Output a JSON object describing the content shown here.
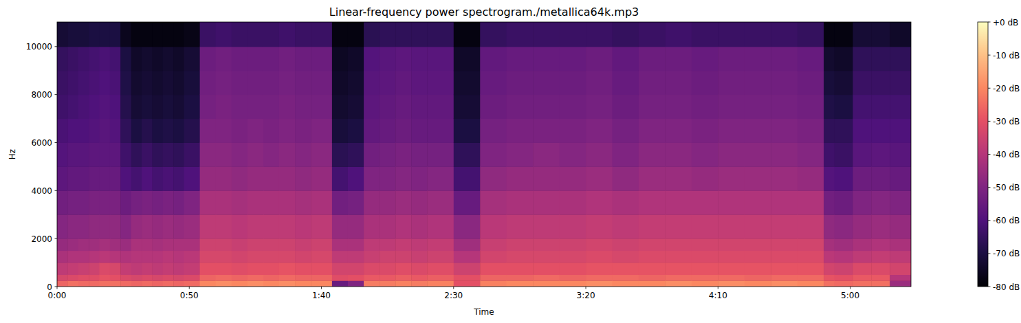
{
  "chart_data": {
    "type": "heatmap",
    "title": "Linear-frequency power spectrogram./metallica64k.mp3",
    "x_label": "Time",
    "y_label": "Hz",
    "xlim": [
      0,
      323
    ],
    "ylim": [
      0,
      11025
    ],
    "xticks": [
      {
        "value": 0,
        "label": "0:00"
      },
      {
        "value": 50,
        "label": "0:50"
      },
      {
        "value": 100,
        "label": "1:40"
      },
      {
        "value": 150,
        "label": "2:30"
      },
      {
        "value": 200,
        "label": "3:20"
      },
      {
        "value": 250,
        "label": "4:10"
      },
      {
        "value": 300,
        "label": "5:00"
      }
    ],
    "yticks": [
      0,
      2000,
      4000,
      6000,
      8000,
      10000
    ],
    "x_edges": [
      0,
      4,
      8,
      12,
      16,
      20,
      24,
      28,
      32,
      36,
      40,
      44,
      48,
      54,
      60,
      66,
      72,
      78,
      84,
      90,
      96,
      104,
      110,
      116,
      122,
      128,
      134,
      140,
      150,
      160,
      170,
      180,
      190,
      200,
      210,
      220,
      230,
      240,
      250,
      260,
      270,
      280,
      290,
      294,
      301,
      308,
      315,
      323
    ],
    "y_edges": [
      0,
      250,
      500,
      1000,
      1500,
      2000,
      3000,
      4000,
      5000,
      6000,
      7000,
      8000,
      9000,
      10000,
      11025
    ],
    "z": [
      [
        -26,
        -33,
        -38,
        -42,
        -46,
        -49,
        -53,
        -57,
        -59,
        -61,
        -63,
        -64,
        -65,
        -72
      ],
      [
        -24,
        -32,
        -37,
        -41,
        -45,
        -48,
        -52,
        -56,
        -58,
        -60,
        -62,
        -63,
        -64,
        -71
      ],
      [
        -25,
        -31,
        -36,
        -41,
        -44,
        -48,
        -52,
        -56,
        -58,
        -60,
        -61,
        -62,
        -63,
        -71
      ],
      [
        -25,
        -31,
        -35,
        -40,
        -44,
        -47,
        -51,
        -55,
        -57,
        -59,
        -60,
        -61,
        -62,
        -70
      ],
      [
        -24,
        -29,
        -32,
        -39,
        -43,
        -47,
        -51,
        -55,
        -57,
        -58,
        -59,
        -60,
        -61,
        -70
      ],
      [
        -24,
        -30,
        -33,
        -40,
        -44,
        -47,
        -51,
        -55,
        -57,
        -59,
        -60,
        -61,
        -62,
        -70
      ],
      [
        -25,
        -32,
        -37,
        -41,
        -45,
        -49,
        -54,
        -60,
        -63,
        -66,
        -68,
        -69,
        -70,
        -76
      ],
      [
        -26,
        -33,
        -38,
        -40,
        -42,
        -46,
        -52,
        -62,
        -66,
        -70,
        -72,
        -73,
        -74,
        -78
      ],
      [
        -25,
        -32,
        -37,
        -40,
        -42,
        -45,
        -51,
        -60,
        -64,
        -68,
        -71,
        -72,
        -73,
        -78
      ],
      [
        -26,
        -33,
        -38,
        -40,
        -43,
        -46,
        -52,
        -62,
        -66,
        -70,
        -72,
        -73,
        -74,
        -78
      ],
      [
        -25,
        -32,
        -37,
        -39,
        -42,
        -45,
        -51,
        -61,
        -65,
        -69,
        -71,
        -72,
        -73,
        -78
      ],
      [
        -26,
        -33,
        -38,
        -40,
        -42,
        -46,
        -52,
        -62,
        -66,
        -70,
        -72,
        -73,
        -74,
        -78
      ],
      [
        -25,
        -32,
        -37,
        -39,
        -42,
        -45,
        -50,
        -60,
        -64,
        -68,
        -70,
        -71,
        -72,
        -77
      ],
      [
        -20,
        -26,
        -30,
        -33,
        -35,
        -38,
        -42,
        -46,
        -48,
        -50,
        -52,
        -53,
        -54,
        -64
      ],
      [
        -19,
        -25,
        -30,
        -33,
        -35,
        -38,
        -42,
        -46,
        -48,
        -50,
        -51,
        -52,
        -53,
        -63
      ],
      [
        -20,
        -26,
        -31,
        -34,
        -36,
        -39,
        -43,
        -47,
        -49,
        -51,
        -52,
        -53,
        -54,
        -64
      ],
      [
        -19,
        -25,
        -30,
        -33,
        -35,
        -38,
        -42,
        -46,
        -48,
        -50,
        -52,
        -53,
        -54,
        -64
      ],
      [
        -20,
        -26,
        -30,
        -33,
        -35,
        -38,
        -42,
        -46,
        -49,
        -51,
        -52,
        -53,
        -54,
        -64
      ],
      [
        -19,
        -25,
        -29,
        -33,
        -35,
        -38,
        -42,
        -46,
        -48,
        -50,
        -51,
        -52,
        -53,
        -63
      ],
      [
        -20,
        -26,
        -30,
        -34,
        -36,
        -39,
        -43,
        -47,
        -49,
        -51,
        -52,
        -53,
        -54,
        -64
      ],
      [
        -20,
        -26,
        -30,
        -33,
        -35,
        -38,
        -42,
        -46,
        -48,
        -50,
        -52,
        -53,
        -54,
        -64
      ],
      [
        -55,
        -31,
        -34,
        -38,
        -42,
        -46,
        -53,
        -62,
        -67,
        -71,
        -73,
        -74,
        -75,
        -78
      ],
      [
        -50,
        -30,
        -34,
        -38,
        -42,
        -46,
        -52,
        -60,
        -66,
        -70,
        -72,
        -73,
        -74,
        -78
      ],
      [
        -22,
        -28,
        -32,
        -36,
        -38,
        -42,
        -46,
        -50,
        -53,
        -56,
        -57,
        -58,
        -59,
        -67
      ],
      [
        -22,
        -28,
        -32,
        -35,
        -38,
        -42,
        -46,
        -50,
        -52,
        -55,
        -56,
        -57,
        -58,
        -66
      ],
      [
        -21,
        -27,
        -31,
        -35,
        -37,
        -41,
        -45,
        -49,
        -51,
        -54,
        -55,
        -56,
        -57,
        -66
      ],
      [
        -22,
        -28,
        -32,
        -36,
        -38,
        -42,
        -46,
        -50,
        -52,
        -55,
        -56,
        -57,
        -58,
        -66
      ],
      [
        -21,
        -27,
        -31,
        -35,
        -37,
        -41,
        -45,
        -49,
        -52,
        -55,
        -56,
        -57,
        -58,
        -66
      ],
      [
        -30,
        -30,
        -35,
        -40,
        -44,
        -48,
        -55,
        -62,
        -66,
        -70,
        -72,
        -73,
        -74,
        -78
      ],
      [
        -21,
        -26,
        -30,
        -34,
        -36,
        -39,
        -43,
        -47,
        -50,
        -52,
        -54,
        -55,
        -56,
        -65
      ],
      [
        -20,
        -26,
        -30,
        -33,
        -35,
        -38,
        -42,
        -46,
        -49,
        -51,
        -53,
        -54,
        -55,
        -64
      ],
      [
        -20,
        -25,
        -30,
        -33,
        -35,
        -38,
        -42,
        -46,
        -48,
        -51,
        -53,
        -54,
        -55,
        -64
      ],
      [
        -20,
        -26,
        -30,
        -33,
        -35,
        -38,
        -42,
        -46,
        -49,
        -51,
        -53,
        -54,
        -55,
        -64
      ],
      [
        -19,
        -25,
        -29,
        -32,
        -34,
        -37,
        -41,
        -45,
        -48,
        -50,
        -52,
        -53,
        -54,
        -64
      ],
      [
        -20,
        -25,
        -29,
        -33,
        -35,
        -38,
        -42,
        -47,
        -50,
        -52,
        -54,
        -55,
        -56,
        -65
      ],
      [
        -20,
        -26,
        -29,
        -32,
        -34,
        -37,
        -41,
        -45,
        -48,
        -50,
        -52,
        -53,
        -54,
        -64
      ],
      [
        -19,
        -25,
        -29,
        -32,
        -34,
        -37,
        -41,
        -45,
        -48,
        -50,
        -52,
        -53,
        -54,
        -63
      ],
      [
        -20,
        -25,
        -29,
        -32,
        -34,
        -37,
        -41,
        -46,
        -49,
        -51,
        -53,
        -54,
        -55,
        -64
      ],
      [
        -19,
        -25,
        -29,
        -32,
        -34,
        -37,
        -41,
        -45,
        -48,
        -50,
        -52,
        -53,
        -54,
        -64
      ],
      [
        -20,
        -26,
        -29,
        -32,
        -34,
        -37,
        -41,
        -45,
        -48,
        -50,
        -52,
        -53,
        -54,
        -64
      ],
      [
        -19,
        -25,
        -29,
        -32,
        -34,
        -37,
        -41,
        -45,
        -48,
        -50,
        -52,
        -53,
        -54,
        -64
      ],
      [
        -20,
        -25,
        -29,
        -32,
        -34,
        -37,
        -41,
        -46,
        -49,
        -51,
        -53,
        -54,
        -55,
        -65
      ],
      [
        -24,
        -29,
        -34,
        -39,
        -43,
        -47,
        -53,
        -59,
        -63,
        -66,
        -69,
        -71,
        -73,
        -78
      ],
      [
        -25,
        -30,
        -35,
        -40,
        -44,
        -48,
        -54,
        -60,
        -64,
        -66,
        -70,
        -72,
        -74,
        -78
      ],
      [
        -24,
        -28,
        -32,
        -38,
        -42,
        -46,
        -50,
        -54,
        -58,
        -60,
        -62,
        -64,
        -66,
        -72
      ],
      [
        -24,
        -28,
        -32,
        -37,
        -41,
        -45,
        -49,
        -54,
        -57,
        -60,
        -62,
        -64,
        -66,
        -72
      ],
      [
        -45,
        -40,
        -34,
        -38,
        -42,
        -46,
        -50,
        -55,
        -58,
        -60,
        -62,
        -64,
        -66,
        -74
      ]
    ],
    "clim": [
      -80,
      0
    ],
    "cticks": [
      {
        "value": 0,
        "label": "+0 dB"
      },
      {
        "value": -10,
        "label": "-10 dB"
      },
      {
        "value": -20,
        "label": "-20 dB"
      },
      {
        "value": -30,
        "label": "-30 dB"
      },
      {
        "value": -40,
        "label": "-40 dB"
      },
      {
        "value": -50,
        "label": "-50 dB"
      },
      {
        "value": -60,
        "label": "-60 dB"
      },
      {
        "value": -70,
        "label": "-70 dB"
      },
      {
        "value": -80,
        "label": "-80 dB"
      }
    ]
  }
}
